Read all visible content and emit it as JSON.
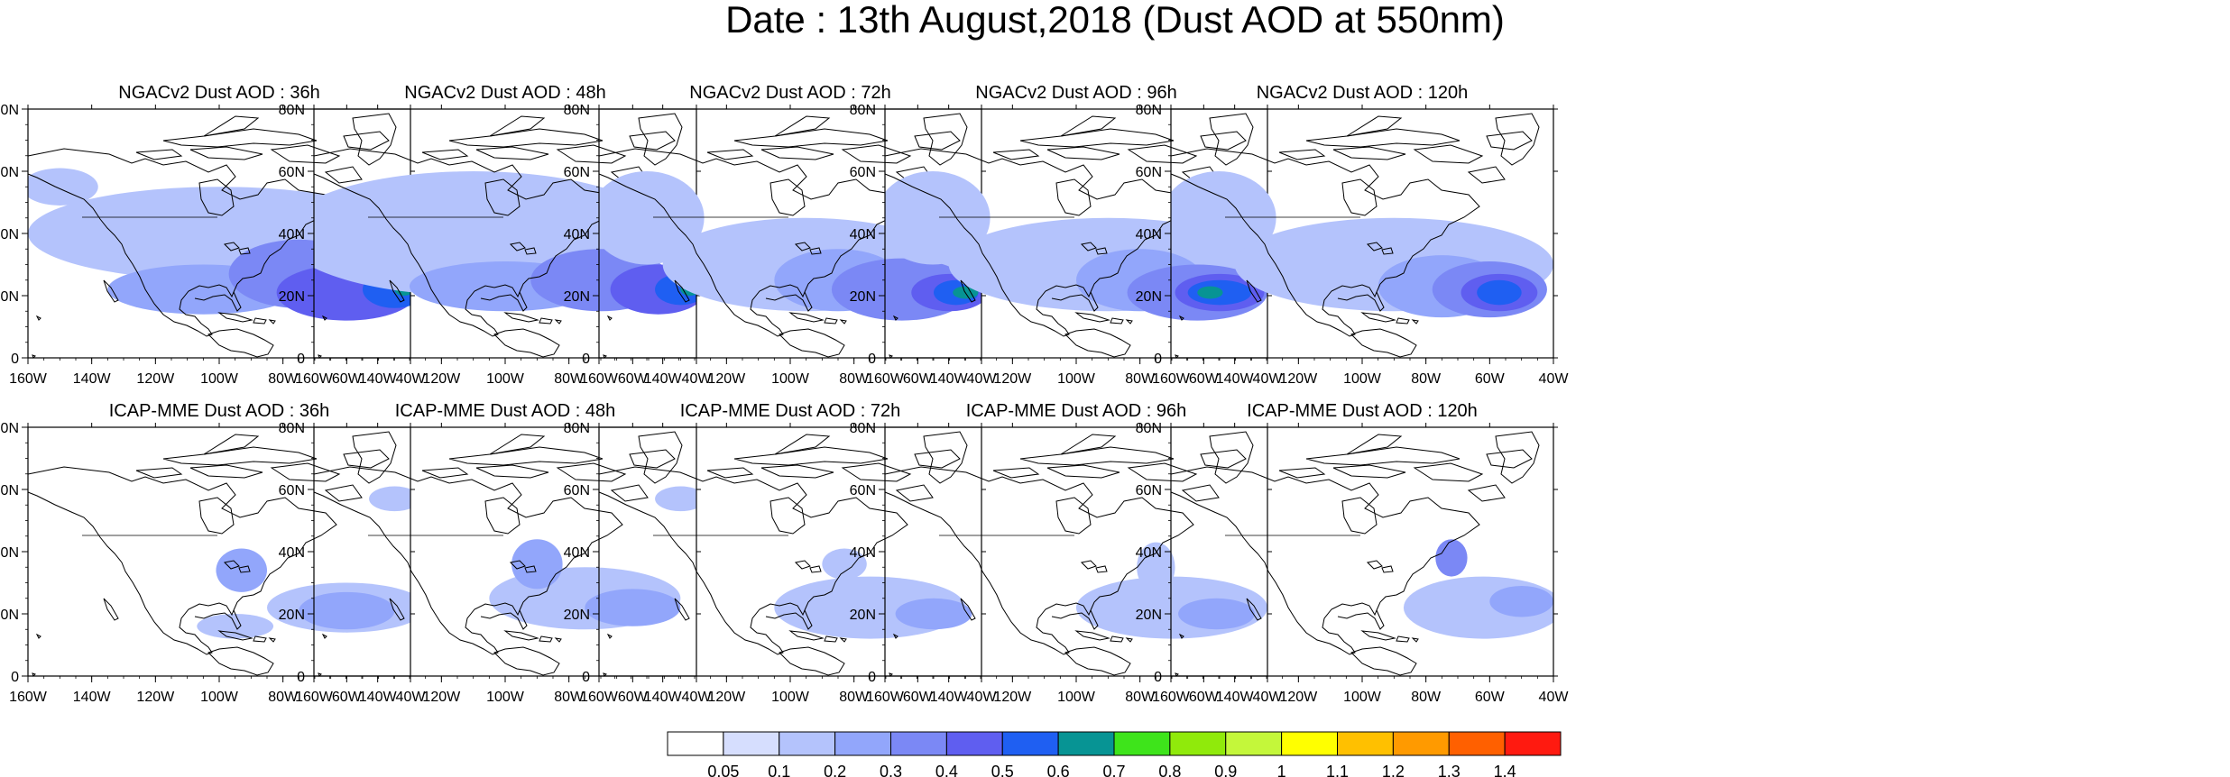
{
  "title": "Date : 13th August,2018 (Dust AOD at 550nm)",
  "axes": {
    "lon_ticks": [
      "160W",
      "140W",
      "120W",
      "100W",
      "80W",
      "60W",
      "40W"
    ],
    "lat_ticks": [
      "80N",
      "60N",
      "40N",
      "20N",
      "0"
    ],
    "lon_range": [
      -160,
      -40
    ],
    "lat_range": [
      0,
      80
    ]
  },
  "panels": [
    {
      "title": "NGACv2 Dust AOD : 36h",
      "model": "NGACv2",
      "lead": 36
    },
    {
      "title": "NGACv2 Dust AOD : 48h",
      "model": "NGACv2",
      "lead": 48
    },
    {
      "title": "NGACv2 Dust AOD : 72h",
      "model": "NGACv2",
      "lead": 72
    },
    {
      "title": "NGACv2 Dust AOD : 96h",
      "model": "NGACv2",
      "lead": 96
    },
    {
      "title": "NGACv2 Dust AOD : 120h",
      "model": "NGACv2",
      "lead": 120
    },
    {
      "title": "ICAP-MME Dust AOD : 36h",
      "model": "ICAP-MME",
      "lead": 36
    },
    {
      "title": "ICAP-MME Dust AOD : 48h",
      "model": "ICAP-MME",
      "lead": 48
    },
    {
      "title": "ICAP-MME Dust AOD : 72h",
      "model": "ICAP-MME",
      "lead": 72
    },
    {
      "title": "ICAP-MME Dust AOD : 96h",
      "model": "ICAP-MME",
      "lead": 96
    },
    {
      "title": "ICAP-MME Dust AOD : 120h",
      "model": "ICAP-MME",
      "lead": 120
    }
  ],
  "colorbar": {
    "labels": [
      "0.05",
      "0.1",
      "0.2",
      "0.3",
      "0.4",
      "0.5",
      "0.6",
      "0.7",
      "0.8",
      "0.9",
      "1",
      "1.1",
      "1.2",
      "1.3",
      "1.4"
    ],
    "colors": [
      "#ffffff",
      "#d6defe",
      "#b4c3fc",
      "#92a6fb",
      "#7b88f5",
      "#5f5ef0",
      "#1f5ff2",
      "#079494",
      "#3ee41b",
      "#90ea0b",
      "#c4f73a",
      "#ffff00",
      "#ffc000",
      "#ff9a00",
      "#ff6000",
      "#ff1a10"
    ]
  },
  "chart_data": {
    "type": "heatmap",
    "title": "Date : 13th August,2018 (Dust AOD at 550nm)",
    "x_range": [
      -160,
      -40
    ],
    "y_range": [
      0,
      80
    ],
    "units": "Dust AOD at 550nm",
    "fields": [
      {
        "panel": "NGACv2 Dust AOD : 36h",
        "blobs": [
          {
            "lon": -100,
            "lat": 40,
            "rlon": 60,
            "rlat": 15,
            "aod": 0.1
          },
          {
            "lon": -150,
            "lat": 55,
            "rlon": 12,
            "rlat": 6,
            "aod": 0.1
          },
          {
            "lon": -105,
            "lat": 22,
            "rlon": 30,
            "rlat": 8,
            "aod": 0.2
          },
          {
            "lon": -75,
            "lat": 27,
            "rlon": 22,
            "rlat": 11,
            "aod": 0.3
          },
          {
            "lon": -60,
            "lat": 21,
            "rlon": 22,
            "rlat": 9,
            "aod": 0.4
          },
          {
            "lon": -45,
            "lat": 22,
            "rlon": 10,
            "rlat": 6,
            "aod": 0.5
          },
          {
            "lon": -42,
            "lat": 22,
            "rlon": 3,
            "rlat": 2,
            "aod": 0.6
          }
        ]
      },
      {
        "panel": "NGACv2 Dust AOD : 48h",
        "blobs": [
          {
            "lon": -110,
            "lat": 40,
            "rlon": 60,
            "rlat": 20,
            "aod": 0.1
          },
          {
            "lon": -100,
            "lat": 23,
            "rlon": 30,
            "rlat": 8,
            "aod": 0.2
          },
          {
            "lon": -70,
            "lat": 25,
            "rlon": 22,
            "rlat": 10,
            "aod": 0.3
          },
          {
            "lon": -52,
            "lat": 22,
            "rlon": 15,
            "rlat": 8,
            "aod": 0.4
          },
          {
            "lon": -45,
            "lat": 22,
            "rlon": 8,
            "rlat": 5,
            "aod": 0.5
          },
          {
            "lon": -42,
            "lat": 22,
            "rlon": 3,
            "rlat": 2,
            "aod": 0.6
          }
        ]
      },
      {
        "panel": "NGACv2 Dust AOD : 72h",
        "blobs": [
          {
            "lon": -145,
            "lat": 45,
            "rlon": 18,
            "rlat": 15,
            "aod": 0.1
          },
          {
            "lon": -95,
            "lat": 30,
            "rlon": 45,
            "rlat": 15,
            "aod": 0.1
          },
          {
            "lon": -85,
            "lat": 25,
            "rlon": 20,
            "rlat": 10,
            "aod": 0.2
          },
          {
            "lon": -65,
            "lat": 22,
            "rlon": 22,
            "rlat": 10,
            "aod": 0.3
          },
          {
            "lon": -50,
            "lat": 21,
            "rlon": 12,
            "rlat": 6,
            "aod": 0.4
          },
          {
            "lon": -48,
            "lat": 21,
            "rlon": 7,
            "rlat": 4,
            "aod": 0.5
          },
          {
            "lon": -45,
            "lat": 21,
            "rlon": 4,
            "rlat": 2,
            "aod": 0.6
          }
        ]
      },
      {
        "panel": "NGACv2 Dust AOD : 96h",
        "blobs": [
          {
            "lon": -145,
            "lat": 45,
            "rlon": 18,
            "rlat": 15,
            "aod": 0.1
          },
          {
            "lon": -90,
            "lat": 30,
            "rlon": 50,
            "rlat": 15,
            "aod": 0.1
          },
          {
            "lon": -80,
            "lat": 25,
            "rlon": 20,
            "rlat": 10,
            "aod": 0.2
          },
          {
            "lon": -62,
            "lat": 21,
            "rlon": 22,
            "rlat": 9,
            "aod": 0.3
          },
          {
            "lon": -55,
            "lat": 21,
            "rlon": 14,
            "rlat": 6,
            "aod": 0.4
          },
          {
            "lon": -55,
            "lat": 21,
            "rlon": 10,
            "rlat": 4,
            "aod": 0.5
          },
          {
            "lon": -58,
            "lat": 21,
            "rlon": 4,
            "rlat": 2,
            "aod": 0.6
          }
        ]
      },
      {
        "panel": "NGACv2 Dust AOD : 120h",
        "blobs": [
          {
            "lon": -145,
            "lat": 45,
            "rlon": 18,
            "rlat": 15,
            "aod": 0.1
          },
          {
            "lon": -90,
            "lat": 30,
            "rlon": 50,
            "rlat": 15,
            "aod": 0.1
          },
          {
            "lon": -75,
            "lat": 23,
            "rlon": 20,
            "rlat": 10,
            "aod": 0.2
          },
          {
            "lon": -60,
            "lat": 22,
            "rlon": 18,
            "rlat": 9,
            "aod": 0.3
          },
          {
            "lon": -57,
            "lat": 21,
            "rlon": 12,
            "rlat": 6,
            "aod": 0.4
          },
          {
            "lon": -57,
            "lat": 21,
            "rlon": 7,
            "rlat": 4,
            "aod": 0.5
          }
        ]
      },
      {
        "panel": "ICAP-MME Dust AOD : 36h",
        "blobs": [
          {
            "lon": -60,
            "lat": 22,
            "rlon": 25,
            "rlat": 8,
            "aod": 0.1
          },
          {
            "lon": -95,
            "lat": 16,
            "rlon": 12,
            "rlat": 4,
            "aod": 0.1
          },
          {
            "lon": -93,
            "lat": 34,
            "rlon": 8,
            "rlat": 7,
            "aod": 0.2
          },
          {
            "lon": -60,
            "lat": 21,
            "rlon": 15,
            "rlat": 6,
            "aod": 0.2
          },
          {
            "lon": -45,
            "lat": 57,
            "rlon": 8,
            "rlat": 4,
            "aod": 0.1
          }
        ]
      },
      {
        "panel": "ICAP-MME Dust AOD : 48h",
        "blobs": [
          {
            "lon": -75,
            "lat": 25,
            "rlon": 30,
            "rlat": 10,
            "aod": 0.1
          },
          {
            "lon": -90,
            "lat": 36,
            "rlon": 8,
            "rlat": 8,
            "aod": 0.2
          },
          {
            "lon": -60,
            "lat": 22,
            "rlon": 15,
            "rlat": 6,
            "aod": 0.2
          },
          {
            "lon": -45,
            "lat": 57,
            "rlon": 8,
            "rlat": 4,
            "aod": 0.1
          }
        ]
      },
      {
        "panel": "ICAP-MME Dust AOD : 72h",
        "blobs": [
          {
            "lon": -75,
            "lat": 22,
            "rlon": 30,
            "rlat": 10,
            "aod": 0.1
          },
          {
            "lon": -83,
            "lat": 36,
            "rlon": 7,
            "rlat": 5,
            "aod": 0.1
          },
          {
            "lon": -55,
            "lat": 20,
            "rlon": 12,
            "rlat": 5,
            "aod": 0.2
          }
        ]
      },
      {
        "panel": "ICAP-MME Dust AOD : 96h",
        "blobs": [
          {
            "lon": -70,
            "lat": 22,
            "rlon": 30,
            "rlat": 10,
            "aod": 0.1
          },
          {
            "lon": -75,
            "lat": 35,
            "rlon": 6,
            "rlat": 8,
            "aod": 0.1
          },
          {
            "lon": -56,
            "lat": 20,
            "rlon": 12,
            "rlat": 5,
            "aod": 0.2
          }
        ]
      },
      {
        "panel": "ICAP-MME Dust AOD : 120h",
        "blobs": [
          {
            "lon": -62,
            "lat": 22,
            "rlon": 25,
            "rlat": 10,
            "aod": 0.1
          },
          {
            "lon": -72,
            "lat": 38,
            "rlon": 5,
            "rlat": 6,
            "aod": 0.3
          },
          {
            "lon": -50,
            "lat": 24,
            "rlon": 10,
            "rlat": 5,
            "aod": 0.2
          }
        ]
      }
    ]
  }
}
